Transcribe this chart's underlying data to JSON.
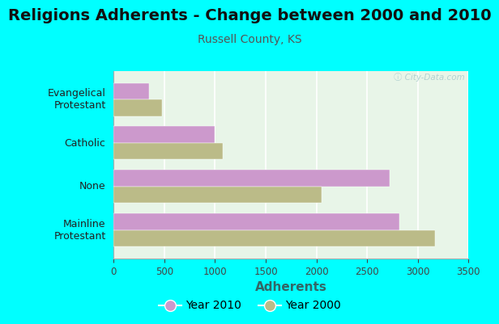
{
  "title": "Religions Adherents - Change between 2000 and 2010",
  "subtitle": "Russell County, KS",
  "xlabel": "Adherents",
  "categories": [
    "Mainline\nProtestant",
    "None",
    "Catholic",
    "Evangelical\nProtestant"
  ],
  "year2010": [
    2820,
    2720,
    1000,
    350
  ],
  "year2000": [
    3170,
    2050,
    1080,
    480
  ],
  "color_2010": "#cc99cc",
  "color_2000": "#bbbb88",
  "xlim": [
    0,
    3500
  ],
  "xticks": [
    0,
    500,
    1000,
    1500,
    2000,
    2500,
    3000,
    3500
  ],
  "background_outer": "#00ffff",
  "background_inner": "#e8f5e8",
  "bar_height": 0.38,
  "title_fontsize": 14,
  "subtitle_fontsize": 10,
  "xlabel_fontsize": 11,
  "watermark": "ⓘ City-Data.com"
}
